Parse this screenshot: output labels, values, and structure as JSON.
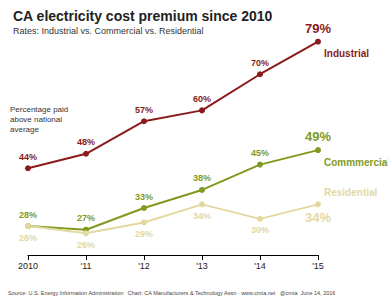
{
  "chart_data": {
    "type": "line",
    "title": "CA electricity cost premium since 2010",
    "subtitle": "Rates: Industrial vs. Commercial vs. Residential",
    "annotation": "Percentage paid above national average",
    "source": "Source: U.S. Energy Information Administration   Chart: CA Manufacturers & Technology Assn · www.cmta.net   @cmta  June 14, 2016",
    "categories": [
      "2010",
      "'11",
      "'12",
      "'13",
      "'14",
      "'15"
    ],
    "series": [
      {
        "name": "Industrial",
        "color": "#8b1a1a",
        "values": [
          44,
          48,
          57,
          60,
          70,
          79
        ],
        "value_labels": [
          "44%",
          "48%",
          "57%",
          "60%",
          "70%",
          "79%"
        ]
      },
      {
        "name": "Commmercial",
        "color": "#7f9a1e",
        "values": [
          28,
          27,
          33,
          38,
          45,
          49
        ],
        "value_labels": [
          "28%",
          "27%",
          "33%",
          "38%",
          "45%",
          "49%"
        ]
      },
      {
        "name": "Residential",
        "color": "#e3d9a0",
        "values": [
          28,
          26,
          29,
          34,
          30,
          34
        ],
        "value_labels": [
          "28%",
          "26%",
          "29%",
          "34%",
          "30%",
          "34%"
        ]
      }
    ],
    "ylim": [
      20,
      85
    ],
    "tick_labels": "x",
    "grid": false,
    "data_labels": true,
    "marker": "circle"
  }
}
